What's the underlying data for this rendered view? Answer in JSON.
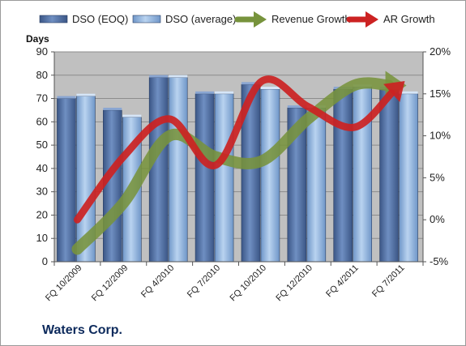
{
  "company": "Waters Corp.",
  "chart_data": {
    "type": "bar",
    "categories": [
      "FQ 10/2009",
      "FQ 12/2009",
      "FQ 4/2010",
      "FQ 7/2010",
      "FQ 10/2010",
      "FQ 12/2010",
      "FQ 4/2011",
      "FQ 7/2011"
    ],
    "ylabel": "Days",
    "ylim": [
      0,
      90
    ],
    "yticks": [
      0,
      10,
      20,
      30,
      40,
      50,
      60,
      70,
      80,
      90
    ],
    "y2lim": [
      -5,
      20
    ],
    "y2ticks": [
      "-5%",
      "0%",
      "5%",
      "10%",
      "15%",
      "20%"
    ],
    "y2tick_values": [
      -5,
      0,
      5,
      10,
      15,
      20
    ],
    "legend_position": "top",
    "grid": true,
    "series": [
      {
        "name": "DSO (EOQ)",
        "type": "bar",
        "axis": "left",
        "color": "#4f6fa3",
        "values": [
          70,
          65,
          79,
          72,
          76,
          66,
          74,
          74
        ]
      },
      {
        "name": "DSO (average)",
        "type": "bar",
        "axis": "left",
        "color": "#8fb4e0",
        "values": [
          71,
          62,
          79,
          72,
          74,
          66,
          75,
          72
        ]
      },
      {
        "name": "Revenue Growth",
        "type": "line",
        "axis": "right",
        "color": "#77933c",
        "values": [
          -3.5,
          2.0,
          10.0,
          7.5,
          7.0,
          12.0,
          16.0,
          16.0
        ]
      },
      {
        "name": "AR Growth",
        "type": "line",
        "axis": "right",
        "color": "#cc2222",
        "values": [
          0,
          7.5,
          12.0,
          6.5,
          16.5,
          13.5,
          11.0,
          16.0
        ]
      }
    ]
  }
}
